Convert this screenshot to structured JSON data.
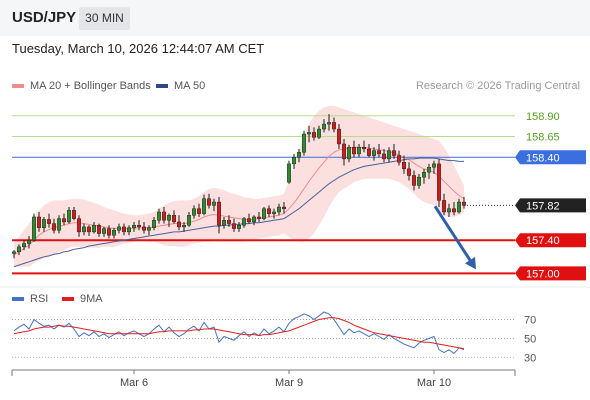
{
  "header": {
    "symbol": "USD/JPY",
    "timeframe": "30 MIN"
  },
  "datetime": "Tuesday, March 10, 2026 12:44:07 AM CET",
  "legend": {
    "ma20": {
      "label": "MA 20 + Bollinger Bands",
      "color": "#f08c8c"
    },
    "ma50": {
      "label": "MA 50",
      "color": "#2e4a8a"
    }
  },
  "credit": "Research © 2026 Trading Central",
  "rsi_legend": {
    "rsi": {
      "label": "RSI",
      "color": "#4472c4"
    },
    "ma9": {
      "label": "9MA",
      "color": "#e02020"
    }
  },
  "chart_data": {
    "type": "candlestick",
    "price_ylim": [
      156.92,
      159.03
    ],
    "levels": [
      {
        "label": "158.90",
        "value": 158.9,
        "kind": "target"
      },
      {
        "label": "158.65",
        "value": 158.65,
        "kind": "target"
      },
      {
        "label": "158.40",
        "value": 158.4,
        "kind": "pivot"
      },
      {
        "label": "157.82",
        "value": 157.82,
        "kind": "last"
      },
      {
        "label": "157.40",
        "value": 157.4,
        "kind": "support"
      },
      {
        "label": "157.00",
        "value": 157.0,
        "kind": "support"
      }
    ],
    "level_colors": {
      "target": "#b6dd8a",
      "pivot": "#3b6fe0",
      "support": "#e01010",
      "last": "#222222"
    },
    "label_colors": {
      "target": "#55a020",
      "pivot": "#ffffff",
      "support": "#ffffff",
      "last": "#ffffff"
    },
    "label_bg": {
      "target": "none",
      "pivot": "#3b6fe0",
      "support": "#e01010",
      "last": "#222222"
    },
    "candles": [
      [
        157.24,
        157.28,
        157.18,
        157.26
      ],
      [
        157.26,
        157.35,
        157.22,
        157.32
      ],
      [
        157.32,
        157.4,
        157.28,
        157.36
      ],
      [
        157.36,
        157.45,
        157.3,
        157.4
      ],
      [
        157.4,
        157.72,
        157.38,
        157.68
      ],
      [
        157.68,
        157.74,
        157.5,
        157.55
      ],
      [
        157.55,
        157.68,
        157.5,
        157.65
      ],
      [
        157.65,
        157.72,
        157.55,
        157.6
      ],
      [
        157.6,
        157.66,
        157.48,
        157.52
      ],
      [
        157.52,
        157.7,
        157.48,
        157.66
      ],
      [
        157.66,
        157.72,
        157.58,
        157.62
      ],
      [
        157.62,
        157.8,
        157.6,
        157.76
      ],
      [
        157.76,
        157.8,
        157.64,
        157.66
      ],
      [
        157.66,
        157.7,
        157.44,
        157.5
      ],
      [
        157.5,
        157.6,
        157.46,
        157.56
      ],
      [
        157.56,
        157.58,
        157.45,
        157.5
      ],
      [
        157.5,
        157.62,
        157.48,
        157.58
      ],
      [
        157.58,
        157.6,
        157.44,
        157.48
      ],
      [
        157.48,
        157.56,
        157.44,
        157.54
      ],
      [
        157.54,
        157.58,
        157.42,
        157.46
      ],
      [
        157.46,
        157.55,
        157.42,
        157.52
      ],
      [
        157.52,
        157.6,
        157.48,
        157.56
      ],
      [
        157.56,
        157.6,
        157.46,
        157.5
      ],
      [
        157.5,
        157.58,
        157.46,
        157.55
      ],
      [
        157.55,
        157.62,
        157.5,
        157.58
      ],
      [
        157.58,
        157.64,
        157.52,
        157.56
      ],
      [
        157.56,
        157.62,
        157.48,
        157.52
      ],
      [
        157.52,
        157.58,
        157.46,
        157.55
      ],
      [
        157.55,
        157.68,
        157.52,
        157.64
      ],
      [
        157.64,
        157.78,
        157.6,
        157.74
      ],
      [
        157.74,
        157.8,
        157.6,
        157.64
      ],
      [
        157.64,
        157.72,
        157.56,
        157.7
      ],
      [
        157.7,
        157.76,
        157.6,
        157.62
      ],
      [
        157.62,
        157.7,
        157.52,
        157.56
      ],
      [
        157.56,
        157.62,
        157.5,
        157.58
      ],
      [
        157.58,
        157.74,
        157.56,
        157.7
      ],
      [
        157.7,
        157.82,
        157.66,
        157.78
      ],
      [
        157.78,
        157.84,
        157.68,
        157.72
      ],
      [
        157.72,
        157.95,
        157.7,
        157.9
      ],
      [
        157.9,
        157.96,
        157.78,
        157.82
      ],
      [
        157.82,
        157.9,
        157.75,
        157.86
      ],
      [
        157.86,
        157.92,
        157.48,
        157.58
      ],
      [
        157.58,
        157.68,
        157.54,
        157.64
      ],
      [
        157.64,
        157.7,
        157.56,
        157.6
      ],
      [
        157.6,
        157.66,
        157.5,
        157.54
      ],
      [
        157.54,
        157.62,
        157.5,
        157.58
      ],
      [
        157.58,
        157.68,
        157.55,
        157.66
      ],
      [
        157.66,
        157.72,
        157.6,
        157.62
      ],
      [
        157.62,
        157.7,
        157.58,
        157.68
      ],
      [
        157.68,
        157.74,
        157.62,
        157.66
      ],
      [
        157.66,
        157.8,
        157.64,
        157.78
      ],
      [
        157.78,
        157.82,
        157.68,
        157.72
      ],
      [
        157.72,
        157.78,
        157.66,
        157.74
      ],
      [
        157.74,
        157.84,
        157.7,
        157.8
      ],
      [
        157.8,
        157.86,
        157.72,
        157.78
      ],
      [
        158.1,
        158.36,
        158.08,
        158.32
      ],
      [
        158.32,
        158.44,
        158.26,
        158.4
      ],
      [
        158.4,
        158.5,
        158.34,
        158.46
      ],
      [
        158.46,
        158.72,
        158.42,
        158.68
      ],
      [
        158.68,
        158.78,
        158.58,
        158.7
      ],
      [
        158.7,
        158.76,
        158.6,
        158.64
      ],
      [
        158.64,
        158.78,
        158.62,
        158.74
      ],
      [
        158.74,
        158.86,
        158.7,
        158.8
      ],
      [
        158.8,
        158.92,
        158.72,
        158.82
      ],
      [
        158.82,
        158.88,
        158.7,
        158.74
      ],
      [
        158.74,
        158.8,
        158.5,
        158.56
      ],
      [
        158.56,
        158.62,
        158.3,
        158.38
      ],
      [
        158.38,
        158.55,
        158.34,
        158.52
      ],
      [
        158.52,
        158.6,
        158.4,
        158.44
      ],
      [
        158.44,
        158.56,
        158.4,
        158.52
      ],
      [
        158.52,
        158.6,
        158.46,
        158.5
      ],
      [
        158.5,
        158.56,
        158.4,
        158.42
      ],
      [
        158.42,
        158.52,
        158.36,
        158.48
      ],
      [
        158.48,
        158.56,
        158.4,
        158.44
      ],
      [
        158.44,
        158.5,
        158.34,
        158.38
      ],
      [
        158.38,
        158.52,
        158.34,
        158.48
      ],
      [
        158.48,
        158.56,
        158.38,
        158.42
      ],
      [
        158.42,
        158.48,
        158.3,
        158.34
      ],
      [
        158.34,
        158.42,
        158.2,
        158.26
      ],
      [
        158.26,
        158.34,
        158.12,
        158.18
      ],
      [
        158.18,
        158.24,
        158.0,
        158.06
      ],
      [
        158.06,
        158.2,
        158.02,
        158.16
      ],
      [
        158.16,
        158.26,
        158.08,
        158.22
      ],
      [
        158.22,
        158.32,
        158.14,
        158.28
      ],
      [
        158.28,
        158.36,
        158.2,
        158.32
      ],
      [
        158.32,
        158.38,
        157.8,
        157.88
      ],
      [
        157.88,
        157.96,
        157.7,
        157.74
      ],
      [
        157.74,
        157.84,
        157.68,
        157.78
      ],
      [
        157.78,
        157.86,
        157.7,
        157.74
      ],
      [
        157.74,
        157.9,
        157.72,
        157.86
      ],
      [
        157.86,
        157.92,
        157.78,
        157.82
      ]
    ],
    "ma20": [
      157.22,
      157.26,
      157.3,
      157.34,
      157.4,
      157.46,
      157.5,
      157.53,
      157.55,
      157.57,
      157.58,
      157.6,
      157.61,
      157.61,
      157.6,
      157.59,
      157.58,
      157.57,
      157.56,
      157.55,
      157.54,
      157.54,
      157.54,
      157.54,
      157.54,
      157.55,
      157.55,
      157.55,
      157.56,
      157.57,
      157.58,
      157.59,
      157.6,
      157.6,
      157.6,
      157.61,
      157.63,
      157.65,
      157.68,
      157.7,
      157.71,
      157.7,
      157.69,
      157.68,
      157.67,
      157.66,
      157.65,
      157.65,
      157.65,
      157.66,
      157.67,
      157.68,
      157.69,
      157.7,
      157.72,
      157.78,
      157.85,
      157.93,
      158.02,
      158.11,
      158.19,
      158.27,
      158.34,
      158.41,
      158.46,
      158.49,
      158.5,
      158.51,
      158.52,
      158.52,
      158.52,
      158.51,
      158.5,
      158.49,
      158.48,
      158.47,
      158.45,
      158.43,
      158.4,
      158.37,
      158.33,
      158.29,
      158.26,
      158.24,
      158.22,
      158.17,
      158.11,
      158.05,
      157.99,
      157.94,
      157.9
    ],
    "bb_upper": [
      157.36,
      157.44,
      157.52,
      157.6,
      157.68,
      157.76,
      157.82,
      157.86,
      157.88,
      157.88,
      157.88,
      157.89,
      157.9,
      157.9,
      157.89,
      157.87,
      157.85,
      157.83,
      157.8,
      157.78,
      157.76,
      157.74,
      157.72,
      157.71,
      157.7,
      157.7,
      157.71,
      157.72,
      157.74,
      157.78,
      157.82,
      157.85,
      157.87,
      157.88,
      157.88,
      157.88,
      157.9,
      157.93,
      157.98,
      158.02,
      158.03,
      158.02,
      158.0,
      157.98,
      157.96,
      157.94,
      157.92,
      157.91,
      157.9,
      157.9,
      157.91,
      157.92,
      157.93,
      157.94,
      157.96,
      158.12,
      158.3,
      158.48,
      158.66,
      158.8,
      158.9,
      158.96,
      159.0,
      159.02,
      159.02,
      159.0,
      158.98,
      158.96,
      158.94,
      158.92,
      158.9,
      158.88,
      158.86,
      158.84,
      158.82,
      158.8,
      158.78,
      158.76,
      158.74,
      158.72,
      158.7,
      158.68,
      158.66,
      158.64,
      158.62,
      158.6,
      158.52,
      158.42,
      158.3,
      158.18,
      158.06
    ],
    "bb_lower": [
      157.08,
      157.08,
      157.08,
      157.08,
      157.12,
      157.16,
      157.18,
      157.2,
      157.22,
      157.26,
      157.28,
      157.31,
      157.32,
      157.32,
      157.31,
      157.31,
      157.31,
      157.31,
      157.32,
      157.32,
      157.32,
      157.34,
      157.36,
      157.37,
      157.38,
      157.4,
      157.39,
      157.38,
      157.38,
      157.36,
      157.34,
      157.33,
      157.33,
      157.32,
      157.32,
      157.34,
      157.36,
      157.37,
      157.38,
      157.38,
      157.39,
      157.38,
      157.38,
      157.38,
      157.38,
      157.38,
      157.38,
      157.39,
      157.4,
      157.42,
      157.43,
      157.44,
      157.45,
      157.46,
      157.48,
      157.44,
      157.4,
      157.38,
      157.38,
      157.42,
      157.48,
      157.58,
      157.68,
      157.8,
      157.9,
      157.98,
      158.02,
      158.06,
      158.1,
      158.12,
      158.14,
      158.14,
      158.14,
      158.14,
      158.14,
      158.14,
      158.12,
      158.1,
      158.06,
      158.02,
      157.96,
      157.9,
      157.86,
      157.84,
      157.82,
      157.74,
      157.7,
      157.68,
      157.68,
      157.7,
      157.74
    ],
    "ma50": [
      157.08,
      157.1,
      157.12,
      157.14,
      157.16,
      157.18,
      157.2,
      157.21,
      157.23,
      157.24,
      157.26,
      157.27,
      157.29,
      157.3,
      157.31,
      157.33,
      157.34,
      157.35,
      157.36,
      157.37,
      157.38,
      157.39,
      157.4,
      157.41,
      157.42,
      157.43,
      157.44,
      157.45,
      157.46,
      157.47,
      157.48,
      157.49,
      157.5,
      157.5,
      157.51,
      157.52,
      157.53,
      157.54,
      157.55,
      157.56,
      157.57,
      157.57,
      157.58,
      157.58,
      157.59,
      157.59,
      157.6,
      157.6,
      157.61,
      157.61,
      157.62,
      157.63,
      157.64,
      157.65,
      157.66,
      157.7,
      157.74,
      157.78,
      157.83,
      157.88,
      157.93,
      157.98,
      158.03,
      158.08,
      158.12,
      158.16,
      158.19,
      158.22,
      158.25,
      158.27,
      158.29,
      158.3,
      158.31,
      158.32,
      158.33,
      158.34,
      158.35,
      158.36,
      158.37,
      158.38,
      158.38,
      158.39,
      158.39,
      158.39,
      158.39,
      158.38,
      158.37,
      158.36,
      158.36,
      158.35,
      158.35
    ],
    "rsi": {
      "ticks": [
        {
          "label": "70",
          "value": 70
        },
        {
          "label": "50",
          "value": 50
        },
        {
          "label": "30",
          "value": 30
        }
      ],
      "ylim": [
        25,
        78
      ],
      "values": [
        58,
        62,
        65,
        60,
        70,
        66,
        63,
        64,
        60,
        64,
        62,
        66,
        60,
        52,
        56,
        53,
        57,
        52,
        55,
        51,
        54,
        57,
        53,
        56,
        58,
        55,
        52,
        55,
        60,
        64,
        57,
        62,
        56,
        52,
        55,
        60,
        63,
        58,
        67,
        60,
        62,
        46,
        52,
        50,
        48,
        53,
        57,
        52,
        56,
        53,
        60,
        55,
        58,
        62,
        57,
        66,
        71,
        73,
        76,
        74,
        70,
        74,
        78,
        76,
        70,
        62,
        54,
        60,
        56,
        58,
        55,
        52,
        55,
        52,
        49,
        54,
        50,
        47,
        44,
        42,
        40,
        45,
        48,
        50,
        52,
        38,
        35,
        38,
        34,
        40,
        38
      ],
      "ma9": [
        55,
        56,
        57,
        58,
        60,
        61,
        62,
        62,
        63,
        64,
        63,
        63,
        62,
        61,
        60,
        59,
        58,
        57,
        56,
        55,
        55,
        55,
        55,
        55,
        55,
        55,
        55,
        55,
        56,
        57,
        57,
        58,
        58,
        58,
        58,
        58,
        59,
        59,
        60,
        60,
        60,
        59,
        58,
        57,
        56,
        55,
        54,
        54,
        54,
        53,
        54,
        54,
        55,
        56,
        57,
        58,
        60,
        62,
        64,
        66,
        68,
        70,
        71,
        72,
        72,
        71,
        69,
        67,
        64,
        62,
        60,
        58,
        56,
        55,
        54,
        53,
        52,
        51,
        50,
        49,
        48,
        47,
        46,
        46,
        45,
        44,
        43,
        42,
        41,
        40,
        39
      ]
    },
    "x_labels": [
      {
        "label": "Mar 6",
        "index": 24
      },
      {
        "label": "Mar 9",
        "index": 55
      },
      {
        "label": "Mar 10",
        "index": 84
      }
    ],
    "forecast_arrow": {
      "from_index": 85,
      "from_value": 157.82,
      "to_index": 90,
      "to_value": 157.0,
      "color": "#2f5fa8"
    }
  }
}
